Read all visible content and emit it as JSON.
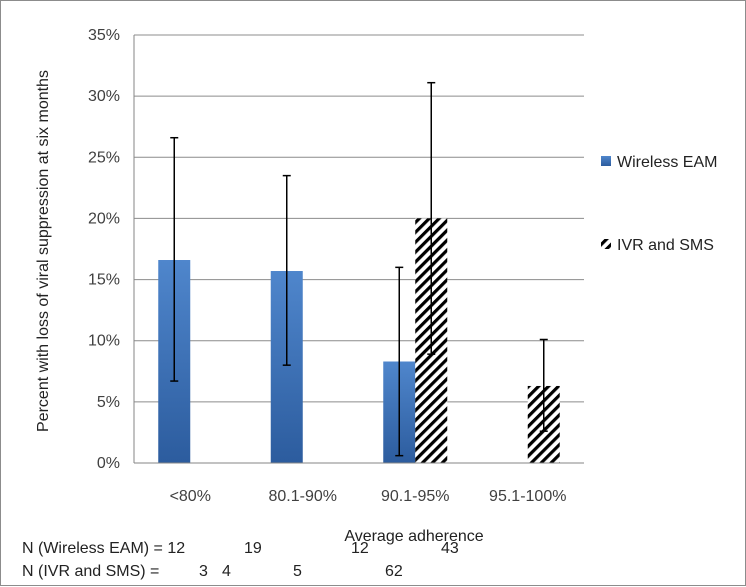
{
  "chart_data": {
    "type": "bar",
    "title": "",
    "xlabel": "Average adherence",
    "ylabel": "Percent with loss of viral suppression at six months",
    "ylim": [
      0,
      35
    ],
    "y_ticks": [
      "0%",
      "5%",
      "10%",
      "15%",
      "20%",
      "25%",
      "30%",
      "35%"
    ],
    "y_tick_values": [
      0,
      5,
      10,
      15,
      20,
      25,
      30,
      35
    ],
    "grid": true,
    "legend_position": "right",
    "categories": [
      "<80%",
      "80.1-90%",
      "90.1-95%",
      "95.1-100%"
    ],
    "series": [
      {
        "name": "Wireless EAM",
        "pattern": "solid",
        "color": "#3e72b8",
        "values": [
          16.6,
          15.7,
          8.3,
          null
        ],
        "error_low": [
          6.7,
          8.0,
          0.6,
          null
        ],
        "error_high": [
          26.6,
          23.5,
          16.0,
          null
        ]
      },
      {
        "name": "IVR and SMS",
        "pattern": "hatched",
        "color": "#000000",
        "values": [
          null,
          null,
          20.0,
          6.3
        ],
        "error_low": [
          null,
          null,
          8.9,
          2.6
        ],
        "error_high": [
          null,
          null,
          31.1,
          10.1
        ]
      }
    ]
  },
  "n_rows": [
    {
      "label": "N (Wireless EAM) = 12",
      "extra": [
        "19",
        "12",
        "43"
      ]
    },
    {
      "label": "N (IVR and SMS) =",
      "extra": [
        "3",
        "4",
        "5",
        "62"
      ]
    }
  ]
}
